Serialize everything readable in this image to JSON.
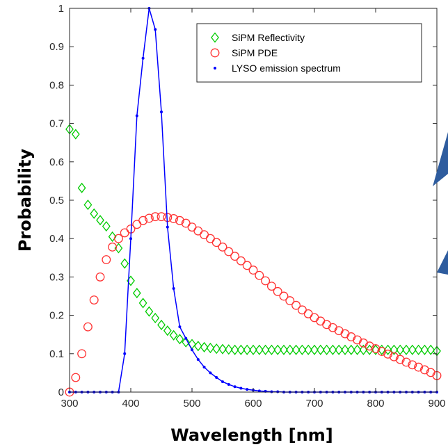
{
  "chart_data": {
    "type": "scatter",
    "xlabel": "Wavelength [nm]",
    "ylabel": "Probability",
    "xlim": [
      300,
      900
    ],
    "ylim": [
      0,
      1
    ],
    "x_ticks": [
      "300",
      "400",
      "500",
      "600",
      "700",
      "800",
      "900"
    ],
    "y_ticks": [
      "0",
      "0.1",
      "0.2",
      "0.3",
      "0.4",
      "0.5",
      "0.6",
      "0.7",
      "0.8",
      "0.9",
      "1"
    ],
    "grid": false,
    "legend_position": "top-right",
    "series": [
      {
        "name": "SiPM Reflectivity",
        "marker": "diamond",
        "color": "#00cc00",
        "connected": false,
        "x": [
          300,
          310,
          320,
          330,
          340,
          350,
          360,
          370,
          380,
          390,
          400,
          410,
          420,
          430,
          440,
          450,
          460,
          470,
          480,
          490,
          500,
          510,
          520,
          530,
          540,
          550,
          560,
          570,
          580,
          590,
          600,
          610,
          620,
          630,
          640,
          650,
          660,
          670,
          680,
          690,
          700,
          710,
          720,
          730,
          740,
          750,
          760,
          770,
          780,
          790,
          800,
          810,
          820,
          830,
          840,
          850,
          860,
          870,
          880,
          890,
          900
        ],
        "y": [
          0.685,
          0.672,
          0.532,
          0.488,
          0.465,
          0.448,
          0.432,
          0.405,
          0.375,
          0.335,
          0.29,
          0.258,
          0.232,
          0.21,
          0.193,
          0.175,
          0.16,
          0.148,
          0.138,
          0.13,
          0.125,
          0.12,
          0.117,
          0.115,
          0.113,
          0.112,
          0.111,
          0.11,
          0.11,
          0.11,
          0.11,
          0.11,
          0.11,
          0.11,
          0.11,
          0.11,
          0.11,
          0.11,
          0.11,
          0.11,
          0.11,
          0.11,
          0.11,
          0.11,
          0.11,
          0.11,
          0.11,
          0.11,
          0.11,
          0.11,
          0.11,
          0.11,
          0.11,
          0.11,
          0.11,
          0.11,
          0.11,
          0.11,
          0.11,
          0.11,
          0.107
        ]
      },
      {
        "name": "SiPM PDE",
        "marker": "circle",
        "color": "#ff3333",
        "connected": false,
        "x": [
          300,
          310,
          320,
          330,
          340,
          350,
          360,
          370,
          380,
          390,
          400,
          410,
          420,
          430,
          440,
          450,
          460,
          470,
          480,
          490,
          500,
          510,
          520,
          530,
          540,
          550,
          560,
          570,
          580,
          590,
          600,
          610,
          620,
          630,
          640,
          650,
          660,
          670,
          680,
          690,
          700,
          710,
          720,
          730,
          740,
          750,
          760,
          770,
          780,
          790,
          800,
          810,
          820,
          830,
          840,
          850,
          860,
          870,
          880,
          890,
          900
        ],
        "y": [
          0.0,
          0.038,
          0.1,
          0.17,
          0.24,
          0.3,
          0.345,
          0.378,
          0.4,
          0.415,
          0.425,
          0.437,
          0.447,
          0.453,
          0.457,
          0.457,
          0.455,
          0.452,
          0.447,
          0.44,
          0.43,
          0.42,
          0.41,
          0.4,
          0.39,
          0.378,
          0.366,
          0.354,
          0.342,
          0.33,
          0.318,
          0.304,
          0.29,
          0.276,
          0.262,
          0.25,
          0.238,
          0.226,
          0.214,
          0.204,
          0.194,
          0.185,
          0.176,
          0.168,
          0.16,
          0.152,
          0.144,
          0.136,
          0.128,
          0.12,
          0.113,
          0.106,
          0.099,
          0.092,
          0.085,
          0.078,
          0.071,
          0.065,
          0.058,
          0.051,
          0.043
        ]
      },
      {
        "name": "LYSO emission spectrum",
        "marker": "dot",
        "color": "#0000ff",
        "connected": true,
        "x": [
          300,
          310,
          320,
          330,
          340,
          350,
          360,
          370,
          380,
          390,
          400,
          410,
          420,
          430,
          440,
          450,
          460,
          470,
          480,
          490,
          500,
          510,
          520,
          530,
          540,
          550,
          560,
          570,
          580,
          590,
          600,
          610,
          620,
          630,
          640,
          650,
          660,
          670,
          680,
          690,
          700,
          710,
          720,
          730,
          740,
          750,
          760,
          770,
          780,
          790,
          800,
          810,
          820,
          830,
          840,
          850,
          860,
          870,
          880,
          890,
          900
        ],
        "y": [
          0,
          0,
          0,
          0,
          0,
          0,
          0,
          0,
          0,
          0.1,
          0.4,
          0.72,
          0.87,
          1.0,
          0.945,
          0.73,
          0.43,
          0.27,
          0.17,
          0.14,
          0.11,
          0.085,
          0.065,
          0.05,
          0.038,
          0.027,
          0.02,
          0.014,
          0.01,
          0.007,
          0.005,
          0.003,
          0.002,
          0.001,
          0.001,
          0,
          0,
          0,
          0,
          0,
          0,
          0,
          0,
          0,
          0,
          0,
          0,
          0,
          0,
          0,
          0,
          0,
          0,
          0,
          0,
          0,
          0,
          0,
          0,
          0,
          0
        ]
      }
    ]
  }
}
